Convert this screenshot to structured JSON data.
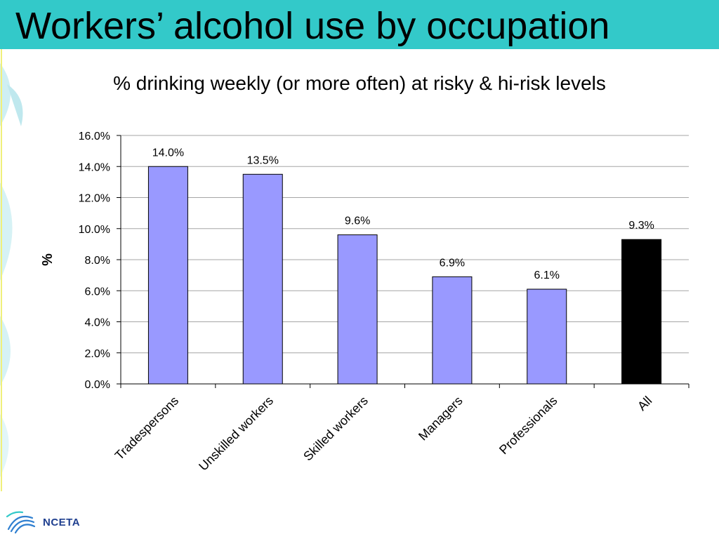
{
  "slide": {
    "title": "Workers’ alcohol use by occupation",
    "logo_text": "NCETA"
  },
  "chart_data": {
    "type": "bar",
    "title": "% drinking weekly (or more often) at risky & hi-risk levels",
    "ylabel": "%",
    "xlabel": "",
    "ylim": [
      0,
      16
    ],
    "yticks": [
      "0.0%",
      "2.0%",
      "4.0%",
      "6.0%",
      "8.0%",
      "10.0%",
      "12.0%",
      "14.0%",
      "16.0%"
    ],
    "categories": [
      "Tradespersons",
      "Unskilled workers",
      "Skilled workers",
      "Managers",
      "Professionals",
      "All"
    ],
    "values": [
      14.0,
      13.5,
      9.6,
      6.9,
      6.1,
      9.3
    ],
    "value_labels": [
      "14.0%",
      "13.5%",
      "9.6%",
      "6.9%",
      "6.1%",
      "9.3%"
    ],
    "bar_colors": [
      "#9999ff",
      "#9999ff",
      "#9999ff",
      "#9999ff",
      "#9999ff",
      "#000000"
    ],
    "grid": true,
    "legend": "none"
  }
}
